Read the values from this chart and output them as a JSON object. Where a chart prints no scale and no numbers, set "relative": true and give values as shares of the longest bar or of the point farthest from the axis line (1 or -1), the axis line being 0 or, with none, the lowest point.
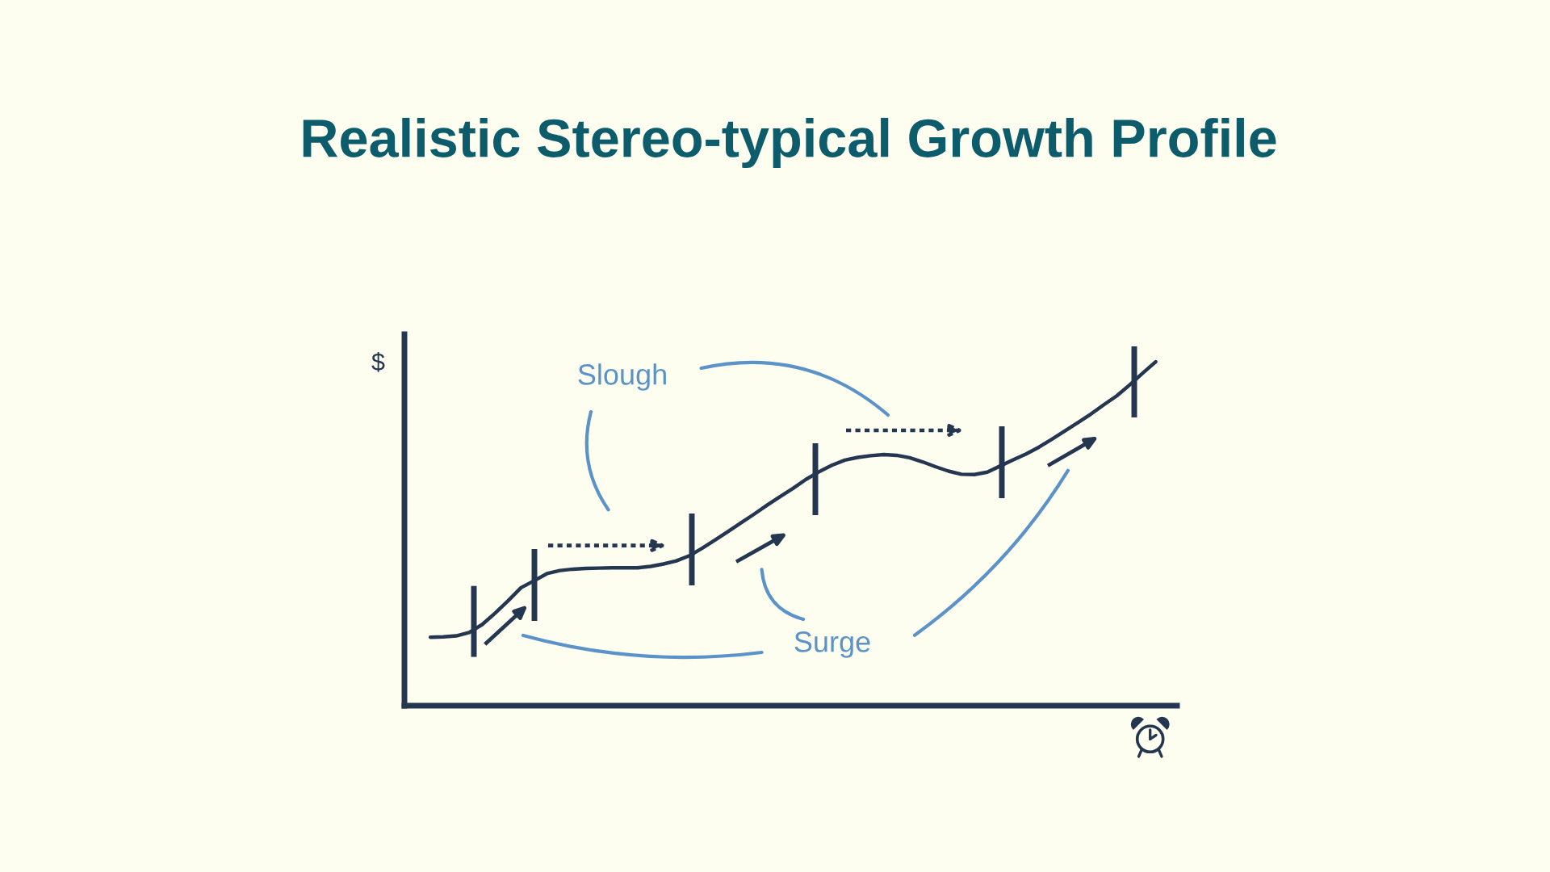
{
  "chart_data": {
    "type": "line",
    "title": "Realistic Stereo-typical Growth Profile",
    "ylabel": "$",
    "annotations": [
      "Slough",
      "Surge"
    ],
    "relative": true,
    "categories": [
      null,
      null,
      null,
      null,
      null,
      null,
      null,
      null,
      null,
      null,
      null,
      null,
      null,
      null,
      null,
      null,
      null,
      null,
      null,
      null,
      null,
      null,
      null,
      null,
      null,
      null,
      null,
      null,
      null,
      null,
      null,
      null,
      null,
      null,
      null,
      null,
      null,
      null,
      null,
      null,
      null,
      null,
      null,
      null,
      null,
      null,
      null,
      null,
      null,
      null,
      null,
      null,
      null,
      null,
      null,
      null,
      null
    ],
    "series": [
      {
        "color": "#243650",
        "values": [
          0.199,
          0.2,
          0.203,
          0.213,
          0.236,
          0.269,
          0.305,
          0.343,
          0.363,
          0.384,
          0.393,
          0.397,
          0.399,
          0.4,
          0.401,
          0.401,
          0.401,
          0.405,
          0.412,
          0.421,
          0.436,
          0.458,
          0.482,
          0.507,
          0.532,
          0.557,
          0.583,
          0.608,
          0.632,
          0.658,
          0.68,
          0.699,
          0.714,
          0.722,
          0.727,
          0.73,
          0.728,
          0.721,
          0.709,
          0.695,
          0.682,
          0.673,
          0.672,
          0.679,
          0.697,
          0.715,
          0.732,
          0.752,
          0.775,
          0.799,
          0.823,
          0.848,
          0.875,
          0.901,
          0.933,
          0.967,
          1.0
        ]
      }
    ]
  }
}
